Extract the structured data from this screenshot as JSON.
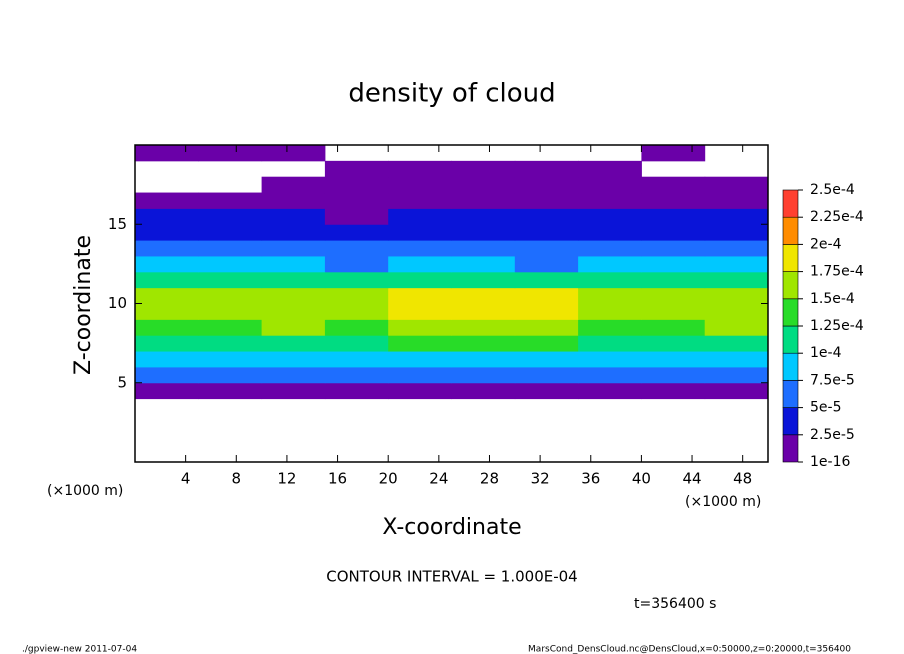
{
  "chart_data": {
    "type": "heatmap",
    "title": "density of cloud",
    "xlabel": "X-coordinate",
    "ylabel": "Z-coordinate",
    "x_unit": "(×1000 m)",
    "y_unit": "(×1000 m)",
    "note": "CONTOUR INTERVAL = 1.000E-04",
    "time": "t=356400 s",
    "footer_left": "./gpview-new  2011-07-04",
    "footer_right": "MarsCond_DensCloud.nc@DensCloud,x=0:50000,z=0:20000,t=356400",
    "xlim": [
      0,
      50
    ],
    "ylim": [
      0,
      20
    ],
    "xticks": [
      4,
      8,
      12,
      16,
      20,
      24,
      28,
      32,
      36,
      40,
      44,
      48
    ],
    "yticks": [
      5,
      10,
      15
    ],
    "x": [
      2.5,
      7.5,
      12.5,
      17.5,
      22.5,
      27.5,
      32.5,
      37.5,
      42.5,
      47.5
    ],
    "z": [
      4.5,
      5.5,
      6.5,
      7.5,
      8.5,
      9.5,
      10.5,
      11.5,
      12.5,
      13.5,
      14.5,
      15.5,
      16.5,
      17.5,
      18.5,
      19.5
    ],
    "values": [
      [
        2e-05,
        2e-05,
        2e-05,
        2e-05,
        2e-05,
        2e-05,
        2e-05,
        2e-05,
        2e-05,
        2e-05
      ],
      [
        6e-05,
        6e-05,
        6e-05,
        6e-05,
        6e-05,
        6e-05,
        6e-05,
        6e-05,
        6e-05,
        6e-05
      ],
      [
        9e-05,
        9e-05,
        9e-05,
        9e-05,
        9e-05,
        9e-05,
        9e-05,
        9e-05,
        9e-05,
        9e-05
      ],
      [
        0.00012,
        0.00012,
        0.00012,
        0.00012,
        0.00013,
        0.00013,
        0.00013,
        0.00012,
        0.00012,
        0.00012
      ],
      [
        0.00014,
        0.00014,
        0.00015,
        0.00014,
        0.00016,
        0.00017,
        0.00016,
        0.00014,
        0.00014,
        0.00015
      ],
      [
        0.00016,
        0.00016,
        0.00017,
        0.00016,
        0.00019,
        0.000195,
        0.00019,
        0.00016,
        0.00016,
        0.00017
      ],
      [
        0.000155,
        0.00015,
        0.00016,
        0.00015,
        0.00018,
        0.00019,
        0.00018,
        0.00015,
        0.00015,
        0.00016
      ],
      [
        0.00011,
        0.00011,
        0.00011,
        0.0001,
        0.00011,
        0.00011,
        0.0001,
        0.00011,
        0.00011,
        0.00011
      ],
      [
        8e-05,
        8e-05,
        8e-05,
        7e-05,
        8e-05,
        8e-05,
        6e-05,
        8e-05,
        8e-05,
        8e-05
      ],
      [
        6e-05,
        6e-05,
        6e-05,
        5e-05,
        6e-05,
        6e-05,
        5e-05,
        6e-05,
        6e-05,
        6e-05
      ],
      [
        4e-05,
        4e-05,
        4e-05,
        3e-05,
        4e-05,
        4e-05,
        4e-05,
        4e-05,
        4e-05,
        4e-05
      ],
      [
        3e-05,
        3e-05,
        3e-05,
        2e-05,
        3e-05,
        3e-05,
        3e-05,
        3e-05,
        3e-05,
        3e-05
      ],
      [
        2e-05,
        2e-05,
        2e-05,
        2e-05,
        2e-05,
        2e-05,
        2e-05,
        2e-05,
        2e-05,
        2e-05
      ],
      [
        null,
        null,
        1e-05,
        1e-05,
        1e-05,
        1e-05,
        1e-05,
        1e-05,
        1e-05,
        1e-05
      ],
      [
        null,
        null,
        null,
        5e-06,
        5e-06,
        5e-06,
        5e-06,
        5e-06,
        null,
        null
      ],
      [
        5e-06,
        5e-06,
        5e-06,
        null,
        null,
        null,
        null,
        null,
        5e-06,
        null
      ]
    ],
    "levels": [
      {
        "value": 1e-16,
        "label": "1e-16"
      },
      {
        "value": 2.5e-05,
        "label": "2.5e-5"
      },
      {
        "value": 5e-05,
        "label": "5e-5"
      },
      {
        "value": 7.5e-05,
        "label": "7.5e-5"
      },
      {
        "value": 0.0001,
        "label": "1e-4"
      },
      {
        "value": 0.000125,
        "label": "1.25e-4"
      },
      {
        "value": 0.00015,
        "label": "1.5e-4"
      },
      {
        "value": 0.000175,
        "label": "1.75e-4"
      },
      {
        "value": 0.0002,
        "label": "2e-4"
      },
      {
        "value": 0.000225,
        "label": "2.25e-4"
      },
      {
        "value": 0.00025,
        "label": "2.5e-4"
      }
    ],
    "colors": [
      "#6a00a8",
      "#0a14d8",
      "#1e6eff",
      "#00c8ff",
      "#00dc82",
      "#28dc28",
      "#a0e600",
      "#f0e600",
      "#ff8c00",
      "#ff4030"
    ]
  }
}
